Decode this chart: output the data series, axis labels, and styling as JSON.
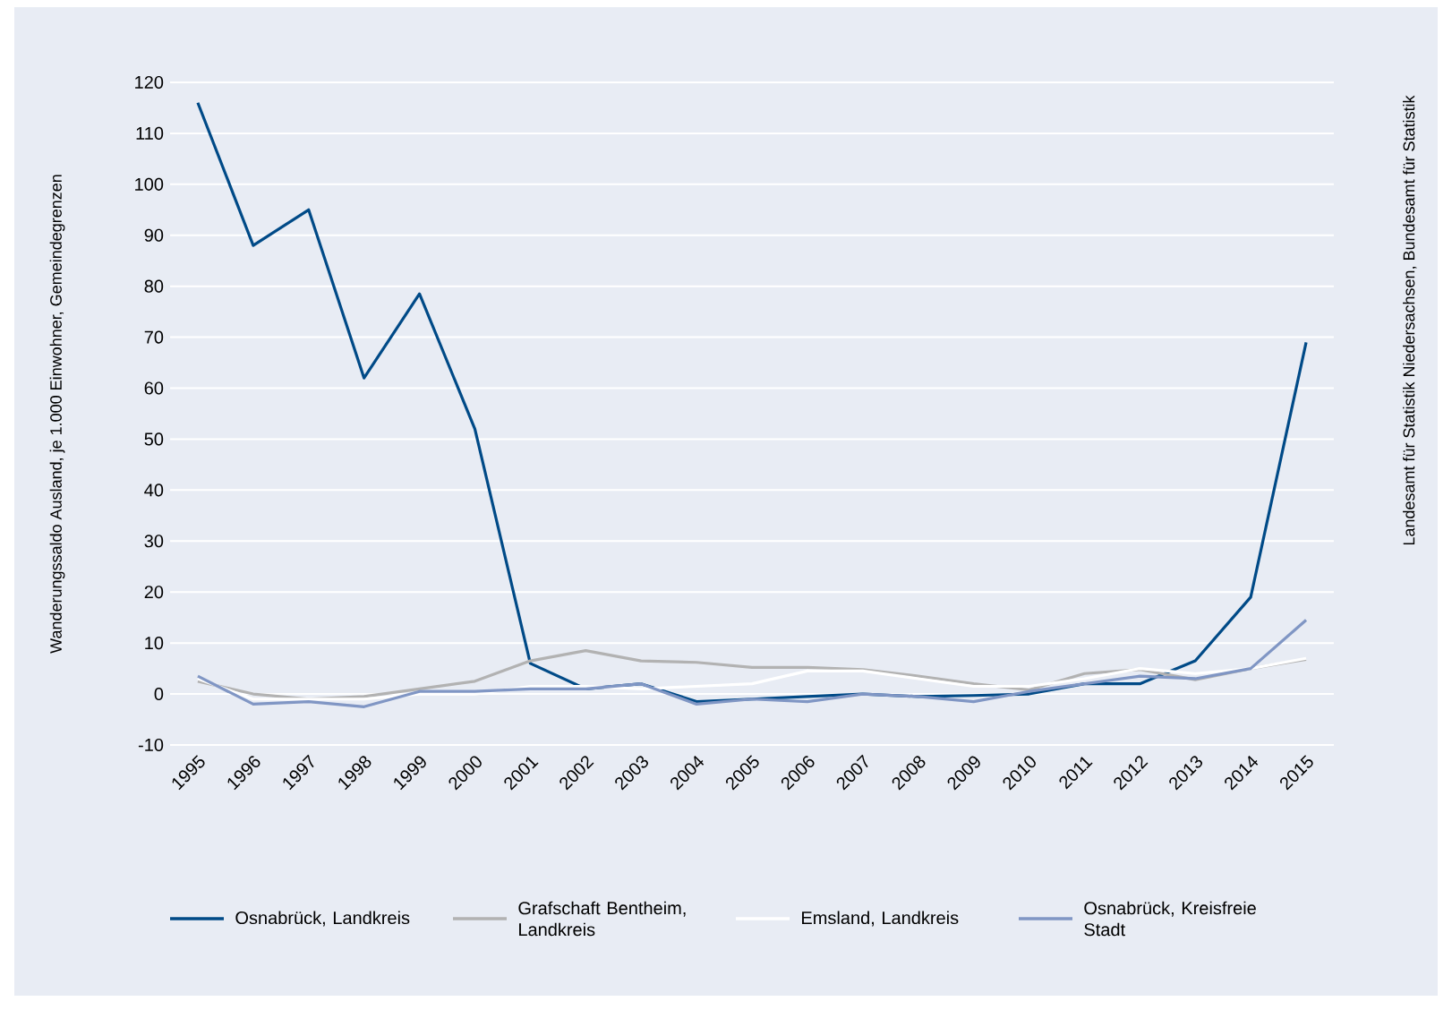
{
  "chart_data": {
    "type": "line",
    "ylabel": "Wanderungssaldo Ausland, je 1.000 Einwohner, Gemeindegrenzen",
    "annotations": [
      "Landesamt für Statistik Niedersachsen, Bundesamt für Statistik"
    ],
    "categories": [
      "1995",
      "1996",
      "1997",
      "1998",
      "1999",
      "2000",
      "2001",
      "2002",
      "2003",
      "2004",
      "2005",
      "2006",
      "2007",
      "2008",
      "2009",
      "2010",
      "2011",
      "2012",
      "2013",
      "2014",
      "2015"
    ],
    "series": [
      {
        "name": "Osnabrück, Landkreis",
        "color": "#004a87",
        "values": [
          116,
          88,
          95,
          62,
          78.5,
          52,
          6,
          1,
          2,
          -1.5,
          -1,
          -0.5,
          0,
          -0.5,
          -0.3,
          0,
          2,
          2,
          6.5,
          19,
          69
        ]
      },
      {
        "name": "Grafschaft Bentheim, Landkreis",
        "color": "#b2b2b2",
        "values": [
          2.5,
          0,
          -1,
          -0.5,
          1,
          2.5,
          6.5,
          8.5,
          6.5,
          6.2,
          5.2,
          5.2,
          4.8,
          3.5,
          2,
          0.8,
          4,
          4.8,
          2.8,
          5,
          6.8
        ]
      },
      {
        "name": "Emsland, Landkreis",
        "color": "#ffffff",
        "values": [
          3,
          -1,
          -1,
          -1,
          0,
          0,
          1.5,
          1.5,
          1,
          1.5,
          2,
          4.5,
          4.5,
          3,
          1.5,
          1.5,
          3,
          5,
          4,
          5,
          7
        ]
      },
      {
        "name": "Osnabrück, Kreisfreie Stadt",
        "color": "#8096c4",
        "values": [
          3.5,
          -2,
          -1.5,
          -2.5,
          0.5,
          0.5,
          1,
          1,
          2,
          -2,
          -1,
          -1.5,
          0,
          -0.5,
          -1.5,
          0.5,
          2,
          3.5,
          3,
          5,
          14.5
        ]
      }
    ],
    "ylim": [
      -10,
      120
    ],
    "yticks": [
      -10,
      0,
      10,
      20,
      30,
      40,
      50,
      60,
      70,
      80,
      90,
      100,
      110,
      120
    ],
    "grid": "y",
    "legend": "bottom",
    "marker": "none",
    "line_style": "solid"
  }
}
